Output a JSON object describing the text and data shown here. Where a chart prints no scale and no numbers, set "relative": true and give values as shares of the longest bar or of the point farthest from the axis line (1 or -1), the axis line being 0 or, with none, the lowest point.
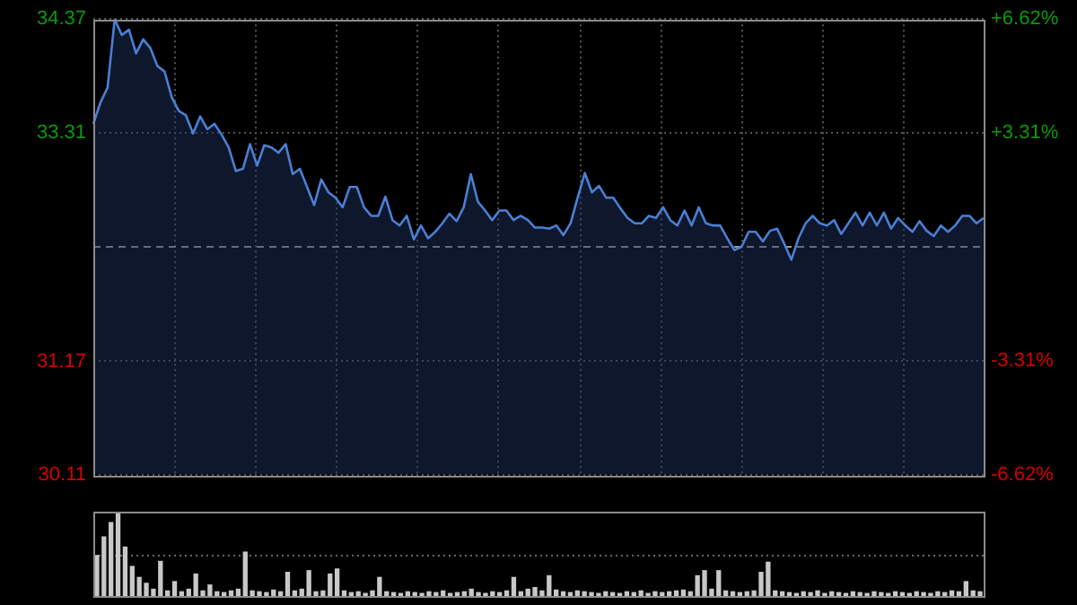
{
  "chart_data": [
    {
      "type": "area",
      "categories": [
        null,
        null,
        null,
        null,
        null,
        null,
        null,
        null,
        null,
        null,
        null,
        null,
        null,
        null,
        null,
        null,
        null,
        null,
        null,
        null,
        null,
        null,
        null,
        null,
        null,
        null,
        null,
        null,
        null,
        null,
        null,
        null,
        null,
        null,
        null,
        null,
        null,
        null,
        null,
        null,
        null,
        null,
        null,
        null,
        null,
        null,
        null,
        null,
        null,
        null,
        null,
        null,
        null,
        null,
        null,
        null,
        null,
        null,
        null,
        null,
        null,
        null,
        null,
        null,
        null,
        null,
        null,
        null,
        null,
        null,
        null,
        null,
        null,
        null,
        null,
        null,
        null,
        null,
        null,
        null,
        null,
        null,
        null,
        null,
        null,
        null,
        null,
        null,
        null,
        null,
        null,
        null,
        null,
        null,
        null,
        null,
        null,
        null,
        null,
        null,
        null,
        null,
        null,
        null,
        null,
        null,
        null,
        null,
        null,
        null,
        null,
        null,
        null,
        null,
        null,
        null,
        null,
        null,
        null,
        null,
        null,
        null,
        null,
        null,
        null,
        null
      ],
      "series": [
        {
          "color": "#4a7fd4",
          "values": [
            33.39,
            33.59,
            33.73,
            34.37,
            34.22,
            34.27,
            34.05,
            34.18,
            34.1,
            33.93,
            33.88,
            33.64,
            33.51,
            33.47,
            33.3,
            33.46,
            33.34,
            33.39,
            33.29,
            33.17,
            32.95,
            32.97,
            33.2,
            33.0,
            33.19,
            33.17,
            33.12,
            33.2,
            32.92,
            32.97,
            32.8,
            32.63,
            32.87,
            32.75,
            32.7,
            32.61,
            32.8,
            32.8,
            32.61,
            32.53,
            32.53,
            32.71,
            32.49,
            32.44,
            32.53,
            32.31,
            32.44,
            32.32,
            32.38,
            32.46,
            32.55,
            32.48,
            32.61,
            32.92,
            32.66,
            32.58,
            32.49,
            32.58,
            32.58,
            32.49,
            32.53,
            32.49,
            32.42,
            32.42,
            32.41,
            32.44,
            32.35,
            32.46,
            32.7,
            32.93,
            32.75,
            32.81,
            32.7,
            32.7,
            32.6,
            32.51,
            32.46,
            32.46,
            32.53,
            32.51,
            32.61,
            32.49,
            32.44,
            32.58,
            32.44,
            32.61,
            32.46,
            32.44,
            32.44,
            32.32,
            32.21,
            32.24,
            32.38,
            32.38,
            32.29,
            32.39,
            32.41,
            32.27,
            32.12,
            32.32,
            32.46,
            32.53,
            32.46,
            32.44,
            32.49,
            32.36,
            32.46,
            32.56,
            32.44,
            32.56,
            32.44,
            32.56,
            32.41,
            32.51,
            32.44,
            32.38,
            32.48,
            32.39,
            32.34,
            32.44,
            32.38,
            32.44,
            32.53,
            32.53,
            32.46,
            32.51
          ]
        }
      ],
      "ylim": [
        30.11,
        34.37
      ],
      "yticks": [
        30.11,
        31.17,
        33.31,
        34.37
      ],
      "y2lim": [
        -6.62,
        6.62
      ],
      "y2ticks": [
        {
          "value": -6.62,
          "label": "-6.62%"
        },
        {
          "value": -3.31,
          "label": "-3.31%"
        },
        {
          "value": 3.31,
          "label": "+3.31%"
        },
        {
          "value": 6.62,
          "label": "+6.62%"
        }
      ],
      "ref_lines": [
        {
          "axis": "y",
          "value": 32.24,
          "line_style": "dashed"
        }
      ],
      "grid": true,
      "legend": false,
      "tick_labels": "y",
      "marker": "none"
    },
    {
      "type": "bar",
      "relative": true,
      "color": "#c8c8c8",
      "categories": [
        null,
        null,
        null,
        null,
        null,
        null,
        null,
        null,
        null,
        null,
        null,
        null,
        null,
        null,
        null,
        null,
        null,
        null,
        null,
        null,
        null,
        null,
        null,
        null,
        null,
        null,
        null,
        null,
        null,
        null,
        null,
        null,
        null,
        null,
        null,
        null,
        null,
        null,
        null,
        null,
        null,
        null,
        null,
        null,
        null,
        null,
        null,
        null,
        null,
        null,
        null,
        null,
        null,
        null,
        null,
        null,
        null,
        null,
        null,
        null,
        null,
        null,
        null,
        null,
        null,
        null,
        null,
        null,
        null,
        null,
        null,
        null,
        null,
        null,
        null,
        null,
        null,
        null,
        null,
        null,
        null,
        null,
        null,
        null,
        null,
        null,
        null,
        null,
        null,
        null,
        null,
        null,
        null,
        null,
        null,
        null,
        null,
        null,
        null,
        null,
        null,
        null,
        null,
        null,
        null,
        null,
        null,
        null,
        null,
        null,
        null,
        null,
        null,
        null,
        null,
        null,
        null,
        null,
        null,
        null,
        null,
        null,
        null,
        null,
        null,
        null
      ],
      "values": [
        0.48,
        0.7,
        0.87,
        1.0,
        0.58,
        0.35,
        0.22,
        0.15,
        0.08,
        0.41,
        0.06,
        0.17,
        0.05,
        0.08,
        0.26,
        0.06,
        0.13,
        0.05,
        0.04,
        0.06,
        0.08,
        0.52,
        0.06,
        0.05,
        0.04,
        0.07,
        0.05,
        0.28,
        0.06,
        0.08,
        0.3,
        0.05,
        0.06,
        0.26,
        0.32,
        0.06,
        0.04,
        0.05,
        0.03,
        0.06,
        0.22,
        0.05,
        0.04,
        0.03,
        0.05,
        0.04,
        0.03,
        0.05,
        0.04,
        0.06,
        0.03,
        0.04,
        0.05,
        0.08,
        0.04,
        0.03,
        0.05,
        0.04,
        0.06,
        0.22,
        0.05,
        0.08,
        0.1,
        0.06,
        0.24,
        0.07,
        0.05,
        0.04,
        0.06,
        0.05,
        0.04,
        0.03,
        0.05,
        0.04,
        0.03,
        0.05,
        0.04,
        0.06,
        0.03,
        0.05,
        0.04,
        0.05,
        0.06,
        0.07,
        0.05,
        0.24,
        0.3,
        0.08,
        0.3,
        0.06,
        0.05,
        0.04,
        0.05,
        0.06,
        0.28,
        0.4,
        0.06,
        0.05,
        0.04,
        0.03,
        0.05,
        0.04,
        0.06,
        0.03,
        0.05,
        0.04,
        0.03,
        0.05,
        0.04,
        0.03,
        0.05,
        0.04,
        0.03,
        0.05,
        0.04,
        0.03,
        0.05,
        0.04,
        0.03,
        0.05,
        0.04,
        0.06,
        0.05,
        0.17,
        0.06,
        0.05
      ],
      "ref_lines": [
        {
          "axis": "y",
          "value": 0.5,
          "line_style": "dotted",
          "color": "#666666"
        }
      ],
      "legend": false,
      "tick_labels": false
    }
  ]
}
